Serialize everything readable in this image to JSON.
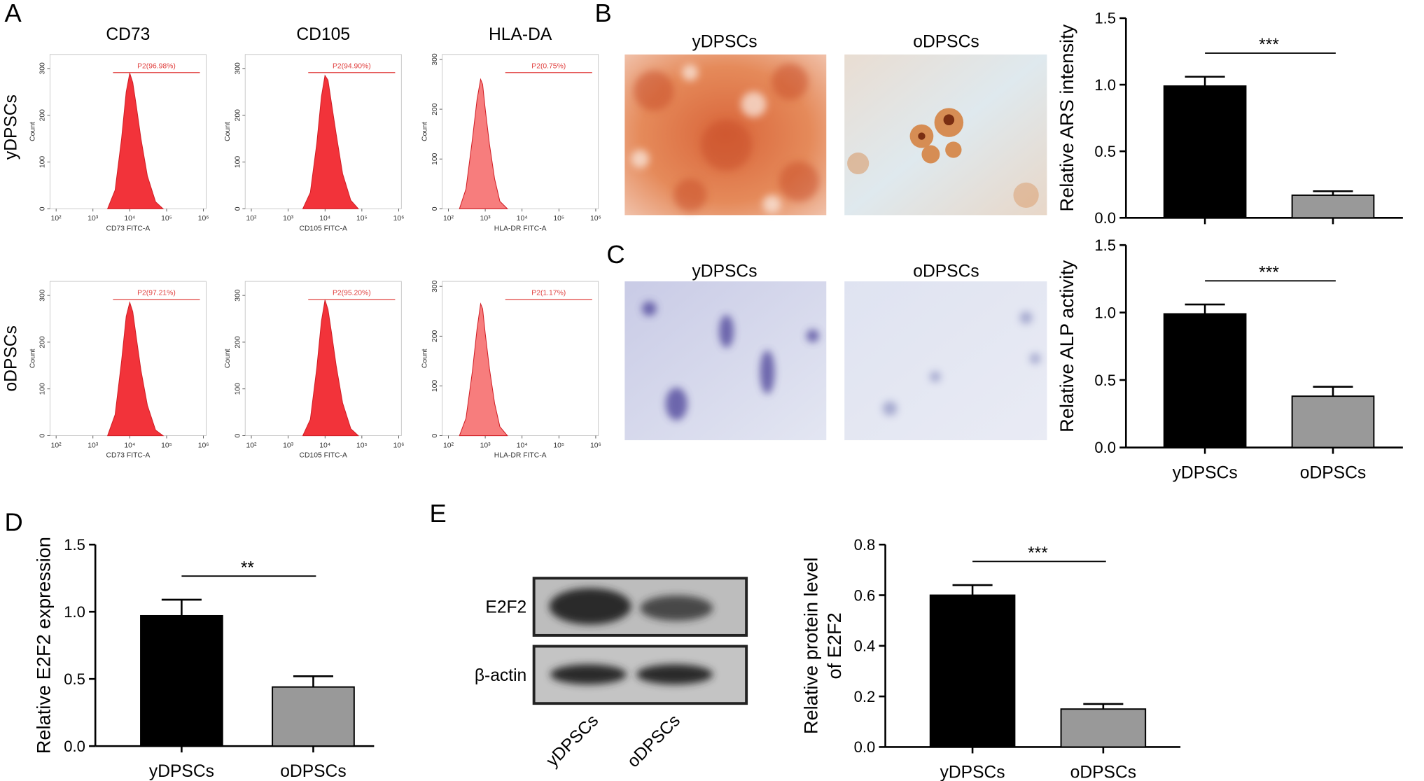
{
  "figure": {
    "panel_labels": [
      "A",
      "B",
      "C",
      "D",
      "E"
    ],
    "row_labels": [
      "yDPSCs",
      "oDPSCs"
    ],
    "image_titles": [
      "yDPSCs",
      "oDPSCs",
      "yDPSCs",
      "oDPSCs"
    ],
    "blot_labels": [
      "E2F2",
      "β-actin"
    ],
    "blot_lanes": [
      "yDPSCs",
      "oDPSCs"
    ]
  },
  "chart_data": [
    {
      "type": "area",
      "title": "CD73",
      "xlabel": "CD73 FITC-A",
      "ylabel": "Count",
      "log_x": true,
      "color": "#f2333a",
      "x": [
        2500,
        4000,
        6000,
        8000,
        10000,
        12000,
        15000,
        20000,
        30000,
        50000,
        80000
      ],
      "values": [
        0,
        40,
        150,
        250,
        290,
        270,
        220,
        150,
        70,
        15,
        0
      ],
      "xlim": [
        68,
        1180000
      ],
      "ylim": [
        0,
        330
      ],
      "xticks": [
        {
          "value": 100,
          "label": "10²"
        },
        {
          "value": 1000,
          "label": "10³"
        },
        {
          "value": 10000,
          "label": "10⁴"
        },
        {
          "value": 100000,
          "label": "10⁵"
        },
        {
          "value": 1000000,
          "label": "10⁶"
        }
      ],
      "yticks": [
        0,
        100,
        200,
        300
      ],
      "gate": {
        "label": "P2(96.98%)",
        "from": 3500,
        "to": 800000
      }
    },
    {
      "type": "area",
      "title": "CD105",
      "xlabel": "CD105 FITC-A",
      "ylabel": "Count",
      "log_x": true,
      "color": "#f2333a",
      "x": [
        2500,
        4000,
        6000,
        8000,
        10000,
        12000,
        15000,
        20000,
        30000,
        50000,
        80000
      ],
      "values": [
        0,
        35,
        140,
        240,
        285,
        275,
        225,
        160,
        75,
        18,
        0
      ],
      "xlim": [
        68,
        1180000
      ],
      "ylim": [
        0,
        330
      ],
      "xticks": [
        {
          "value": 100,
          "label": "10²"
        },
        {
          "value": 1000,
          "label": "10³"
        },
        {
          "value": 10000,
          "label": "10⁴"
        },
        {
          "value": 100000,
          "label": "10⁵"
        },
        {
          "value": 1000000,
          "label": "10⁶"
        }
      ],
      "yticks": [
        0,
        100,
        200,
        300
      ],
      "gate": {
        "label": "P2(94.90%)",
        "from": 3500,
        "to": 800000
      }
    },
    {
      "type": "area",
      "title": "HLA-DA",
      "xlabel": "HLA-DR FITC-A",
      "ylabel": "Count",
      "log_x": true,
      "color": "#f77d7d",
      "x": [
        200,
        300,
        450,
        600,
        750,
        850,
        1000,
        1300,
        1800,
        2500,
        4000
      ],
      "values": [
        0,
        40,
        140,
        220,
        260,
        250,
        200,
        130,
        60,
        15,
        0
      ],
      "xlim": [
        68,
        1180000
      ],
      "ylim": [
        0,
        310
      ],
      "xticks": [
        {
          "value": 100,
          "label": "10²"
        },
        {
          "value": 1000,
          "label": "10³"
        },
        {
          "value": 10000,
          "label": "10⁴"
        },
        {
          "value": 100000,
          "label": "10⁵"
        },
        {
          "value": 1000000,
          "label": "10⁶"
        }
      ],
      "yticks": [
        0,
        100,
        200,
        300
      ],
      "gate": {
        "label": "P2(0.75%)",
        "from": 3500,
        "to": 800000
      }
    },
    {
      "type": "area",
      "xlabel": "CD73 FITC-A",
      "ylabel": "Count",
      "log_x": true,
      "color": "#f2333a",
      "x": [
        2500,
        4000,
        6000,
        8000,
        10000,
        12000,
        15000,
        20000,
        30000,
        50000,
        80000
      ],
      "values": [
        0,
        45,
        160,
        255,
        285,
        265,
        210,
        140,
        65,
        12,
        0
      ],
      "xlim": [
        68,
        1180000
      ],
      "ylim": [
        0,
        330
      ],
      "xticks": [
        {
          "value": 100,
          "label": "10²"
        },
        {
          "value": 1000,
          "label": "10³"
        },
        {
          "value": 10000,
          "label": "10⁴"
        },
        {
          "value": 100000,
          "label": "10⁵"
        },
        {
          "value": 1000000,
          "label": "10⁶"
        }
      ],
      "yticks": [
        0,
        100,
        200,
        300
      ],
      "gate": {
        "label": "P2(97.21%)",
        "from": 3500,
        "to": 800000
      }
    },
    {
      "type": "area",
      "xlabel": "CD105 FITC-A",
      "ylabel": "Count",
      "log_x": true,
      "color": "#f2333a",
      "x": [
        2500,
        4000,
        6000,
        8000,
        10000,
        12000,
        15000,
        20000,
        30000,
        50000,
        80000
      ],
      "values": [
        0,
        35,
        145,
        245,
        290,
        270,
        220,
        150,
        70,
        15,
        0
      ],
      "xlim": [
        68,
        1180000
      ],
      "ylim": [
        0,
        330
      ],
      "xticks": [
        {
          "value": 100,
          "label": "10²"
        },
        {
          "value": 1000,
          "label": "10³"
        },
        {
          "value": 10000,
          "label": "10⁴"
        },
        {
          "value": 100000,
          "label": "10⁵"
        },
        {
          "value": 1000000,
          "label": "10⁶"
        }
      ],
      "yticks": [
        0,
        100,
        200,
        300
      ],
      "gate": {
        "label": "P2(95.20%)",
        "from": 3500,
        "to": 800000
      }
    },
    {
      "type": "area",
      "xlabel": "HLA-DR FITC-A",
      "ylabel": "Count",
      "log_x": true,
      "color": "#f77d7d",
      "x": [
        200,
        300,
        450,
        600,
        750,
        850,
        1000,
        1300,
        1800,
        2500,
        4000
      ],
      "values": [
        0,
        35,
        130,
        215,
        265,
        255,
        205,
        135,
        65,
        18,
        0
      ],
      "xlim": [
        68,
        1180000
      ],
      "ylim": [
        0,
        310
      ],
      "xticks": [
        {
          "value": 100,
          "label": "10²"
        },
        {
          "value": 1000,
          "label": "10³"
        },
        {
          "value": 10000,
          "label": "10⁴"
        },
        {
          "value": 100000,
          "label": "10⁵"
        },
        {
          "value": 1000000,
          "label": "10⁶"
        }
      ],
      "yticks": [
        0,
        100,
        200,
        300
      ],
      "gate": {
        "label": "P2(1.17%)",
        "from": 3500,
        "to": 800000
      }
    },
    {
      "type": "bar",
      "ylabel": [
        "Relative ARS intensity"
      ],
      "categories": [
        null,
        null
      ],
      "values": [
        0.99,
        0.17
      ],
      "errors": [
        0.07,
        0.03
      ],
      "colors": [
        "#000000",
        "#999999"
      ],
      "ylim": [
        0,
        1.5
      ],
      "yticks": [
        {
          "value": 0,
          "label": "0.0"
        },
        0.5,
        {
          "value": 1,
          "label": "1.0"
        },
        1.5
      ],
      "significance": "***"
    },
    {
      "type": "bar",
      "ylabel": [
        "Relative ALP activity"
      ],
      "categories": [
        "yDPSCs",
        "oDPSCs"
      ],
      "values": [
        0.99,
        0.38
      ],
      "errors": [
        0.07,
        0.07
      ],
      "colors": [
        "#000000",
        "#999999"
      ],
      "ylim": [
        0,
        1.5
      ],
      "yticks": [
        {
          "value": 0,
          "label": "0.0"
        },
        0.5,
        {
          "value": 1,
          "label": "1.0"
        },
        1.5
      ],
      "significance": "***"
    },
    {
      "type": "bar",
      "ylabel": [
        "Relative E2F2 expression"
      ],
      "categories": [
        "yDPSCs",
        "oDPSCs"
      ],
      "values": [
        0.97,
        0.44
      ],
      "errors": [
        0.12,
        0.08
      ],
      "colors": [
        "#000000",
        "#999999"
      ],
      "ylim": [
        0,
        1.5
      ],
      "yticks": [
        {
          "value": 0,
          "label": "0.0"
        },
        0.5,
        {
          "value": 1,
          "label": "1.0"
        },
        1.5
      ],
      "significance": "**"
    },
    {
      "type": "bar",
      "ylabel": [
        "Relative protein level",
        "of E2F2"
      ],
      "categories": [
        "yDPSCs",
        "oDPSCs"
      ],
      "values": [
        0.6,
        0.15
      ],
      "errors": [
        0.04,
        0.02
      ],
      "colors": [
        "#000000",
        "#999999"
      ],
      "ylim": [
        0,
        0.8
      ],
      "yticks": [
        {
          "value": 0,
          "label": "0.0"
        },
        0.2,
        0.4,
        0.6,
        0.8
      ],
      "significance": "***"
    }
  ]
}
